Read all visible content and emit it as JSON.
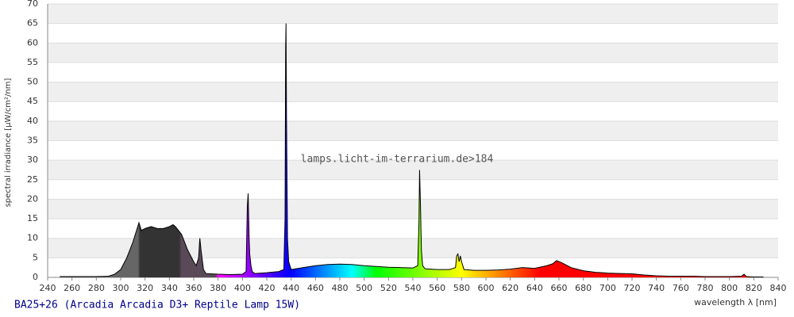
{
  "chart_data": {
    "type": "area",
    "title": "BA25+26 (Arcadia Arcadia D3+ Reptile Lamp 15W)",
    "annotation": "lamps.licht-im-terrarium.de>184",
    "x_label": "wavelength λ [nm]",
    "y_label": "spectral irradiance [µW/cm²/nm]",
    "xlim": [
      240,
      840
    ],
    "ylim": [
      0,
      70
    ],
    "xticks": [
      240,
      260,
      280,
      300,
      320,
      340,
      360,
      380,
      400,
      420,
      440,
      460,
      480,
      500,
      520,
      540,
      560,
      580,
      600,
      620,
      640,
      660,
      680,
      700,
      720,
      740,
      760,
      780,
      800,
      820,
      840
    ],
    "yticks": [
      0,
      5,
      10,
      15,
      20,
      25,
      30,
      35,
      40,
      45,
      50,
      55,
      60,
      65,
      70
    ],
    "grid": true,
    "x": [
      250,
      260,
      270,
      280,
      290,
      295,
      300,
      305,
      310,
      313,
      315,
      317,
      320,
      325,
      330,
      335,
      340,
      343,
      345,
      350,
      355,
      360,
      362,
      364,
      365,
      366,
      368,
      370,
      380,
      390,
      400,
      403,
      404,
      404.7,
      405.5,
      406,
      407,
      408,
      410,
      420,
      430,
      434,
      435,
      435.5,
      435.8,
      436.2,
      437,
      438,
      440,
      450,
      460,
      470,
      480,
      490,
      500,
      510,
      520,
      530,
      540,
      544,
      545,
      545.5,
      546.2,
      547,
      548,
      550,
      560,
      570,
      575,
      576,
      577,
      578,
      579,
      580,
      582,
      590,
      600,
      610,
      620,
      630,
      640,
      650,
      655,
      658,
      662,
      670,
      680,
      690,
      700,
      710,
      720,
      730,
      740,
      750,
      760,
      770,
      780,
      790,
      800,
      810,
      812,
      814,
      820,
      828
    ],
    "values": [
      0.2,
      0.2,
      0.2,
      0.2,
      0.3,
      0.8,
      2,
      5,
      9,
      12,
      14,
      12,
      12.5,
      13,
      12.5,
      12.5,
      13,
      13.5,
      13,
      11,
      7,
      4,
      3,
      5,
      10,
      7,
      2,
      1,
      0.8,
      0.7,
      0.8,
      1.5,
      18,
      21.5,
      10,
      6,
      3,
      1.5,
      1,
      1.2,
      1.5,
      2,
      15,
      59,
      65,
      41,
      10,
      4,
      2,
      2.5,
      3,
      3.3,
      3.4,
      3.3,
      3,
      2.8,
      2.6,
      2.5,
      2.4,
      3,
      14,
      27.5,
      19,
      7,
      3,
      2.2,
      2,
      2,
      2.5,
      5.5,
      6,
      4,
      5.5,
      4,
      2,
      1.8,
      1.8,
      1.9,
      2.1,
      2.5,
      2.3,
      3,
      3.5,
      4.3,
      3.8,
      2.5,
      1.7,
      1.3,
      1.1,
      1,
      0.9,
      0.6,
      0.4,
      0.3,
      0.3,
      0.3,
      0.2,
      0.2,
      0.2,
      0.3,
      0.8,
      0.2,
      0.1,
      0.1
    ]
  }
}
